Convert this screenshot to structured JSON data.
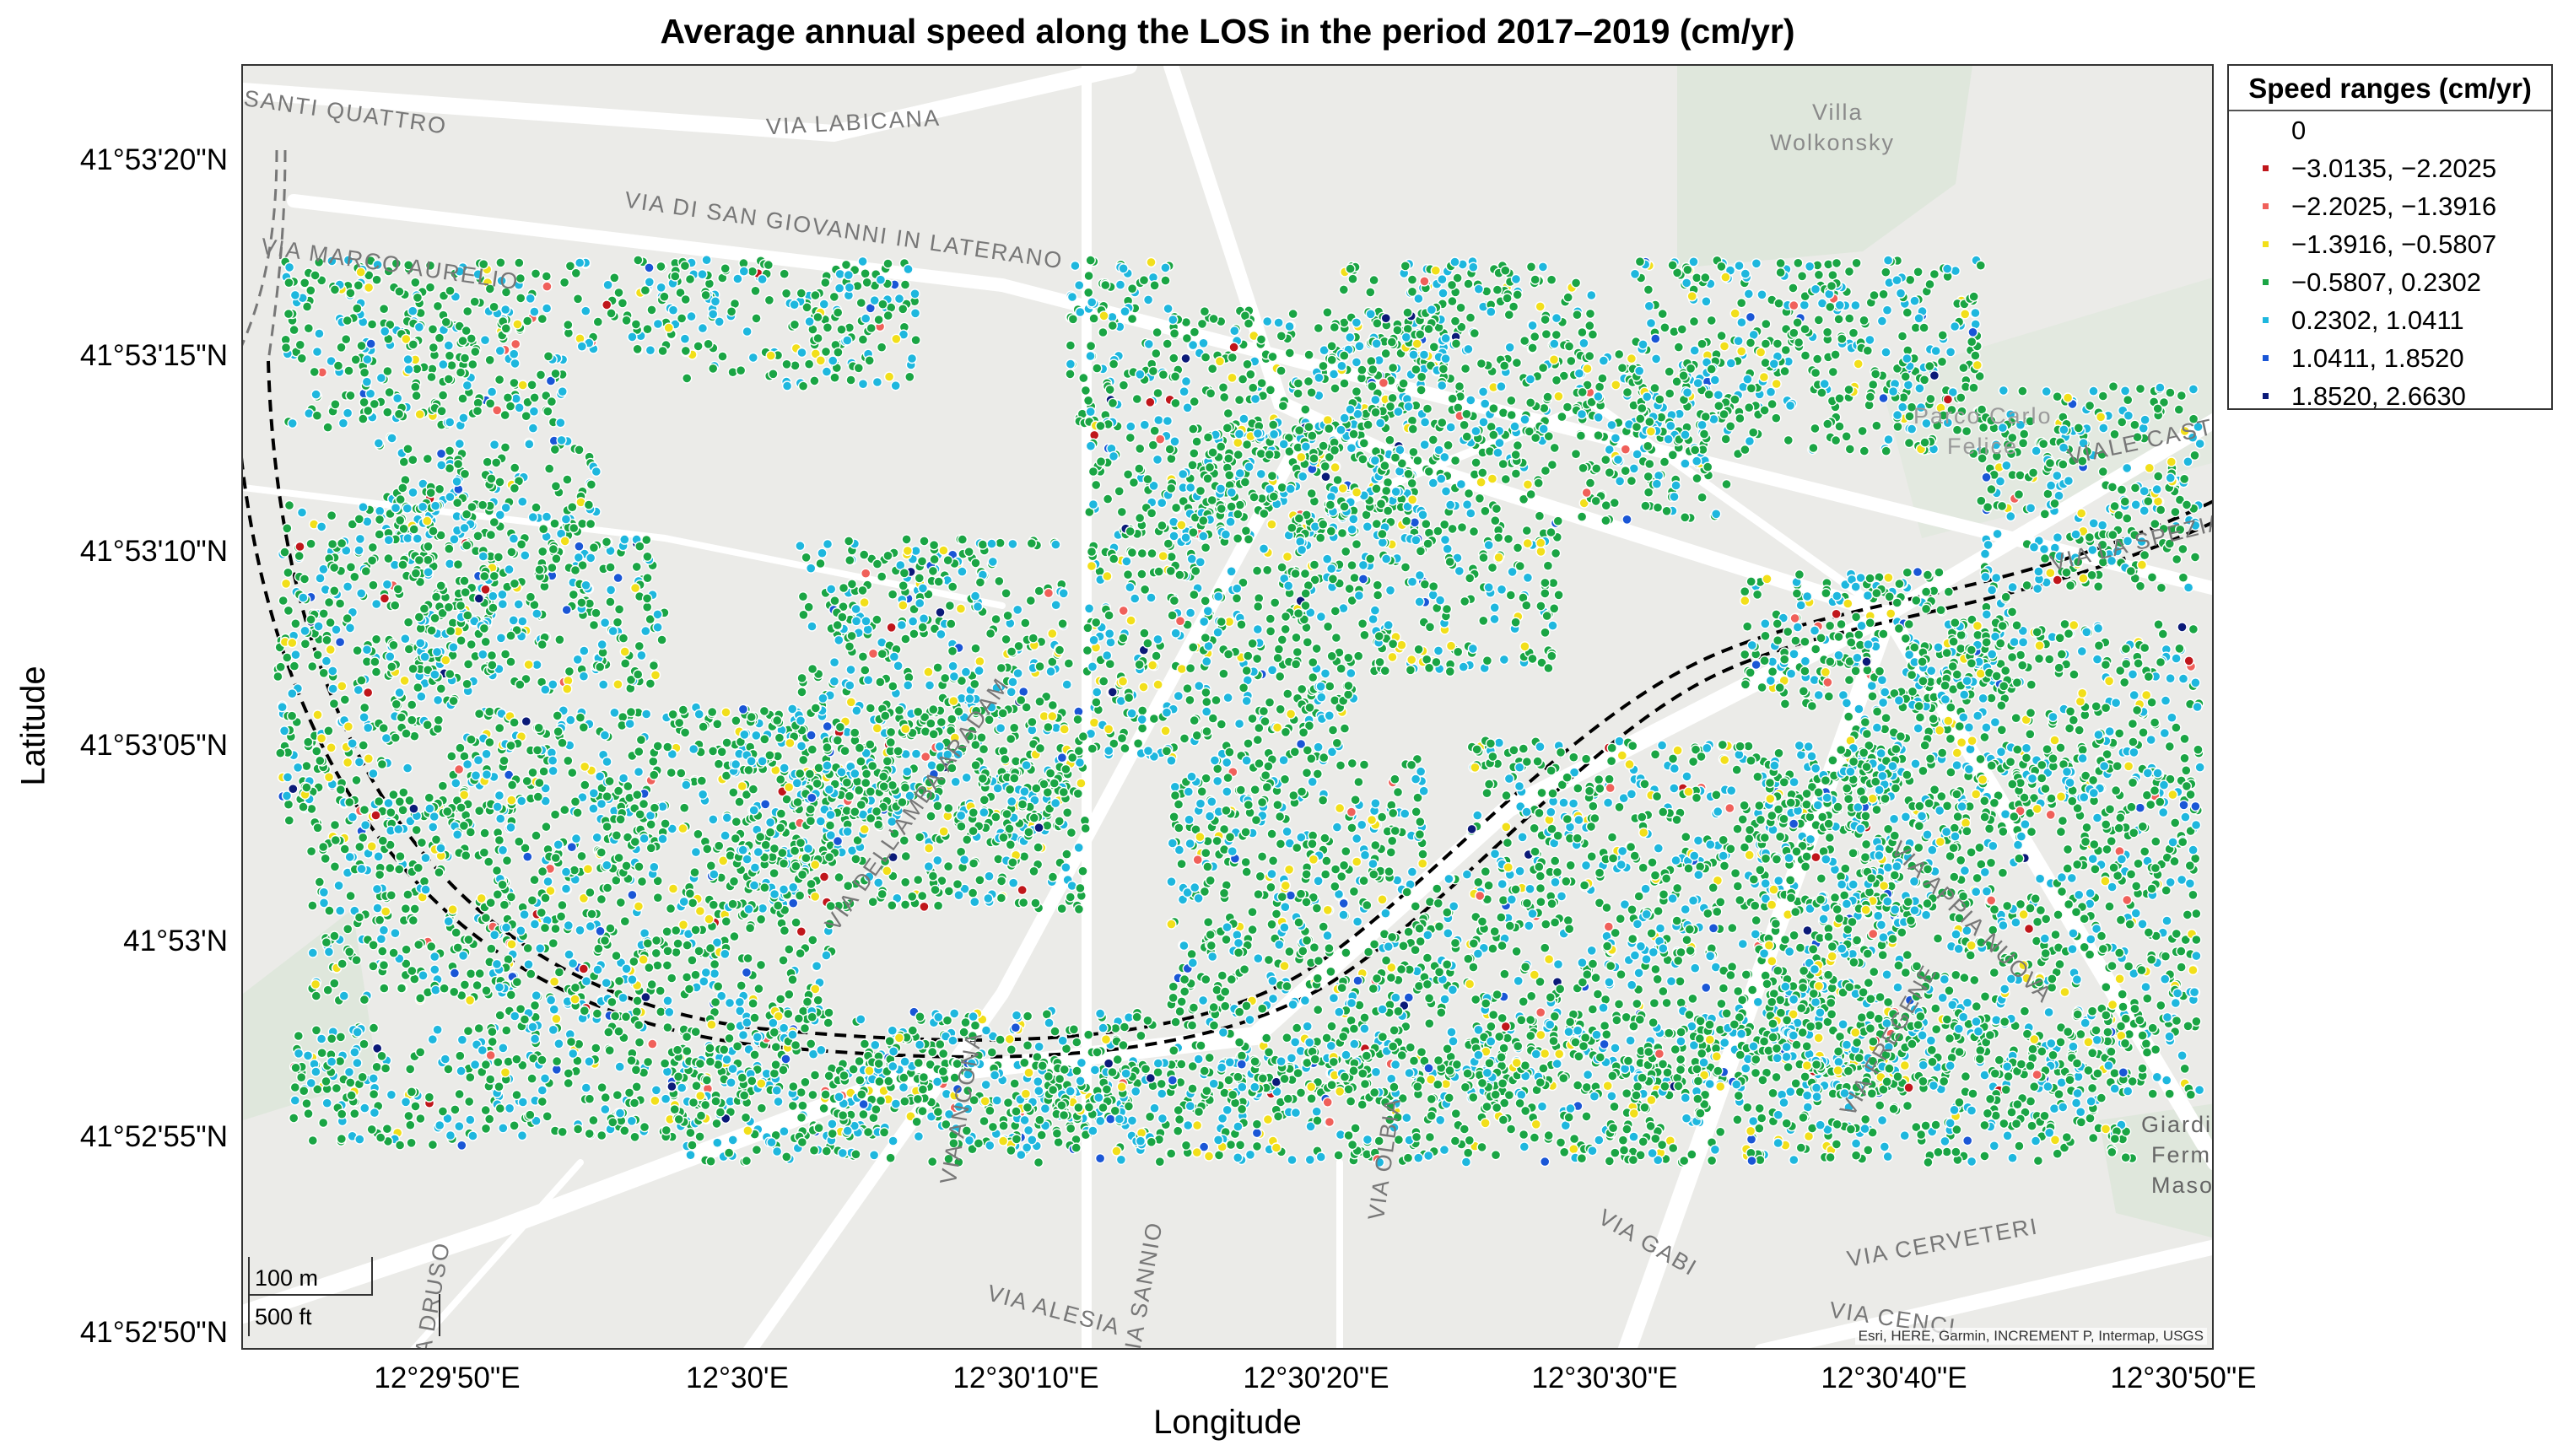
{
  "title": "Average annual speed along the LOS in the period 2017–2019 (cm/yr)",
  "axes": {
    "xlabel": "Longitude",
    "ylabel": "Latitude",
    "xticks": [
      "12°29'50\"E",
      "12°30'E",
      "12°30'10\"E",
      "12°30'20\"E",
      "12°30'30\"E",
      "12°30'40\"E",
      "12°30'50\"E"
    ],
    "yticks": [
      "41°53'20\"N",
      "41°53'15\"N",
      "41°53'10\"N",
      "41°53'05\"N",
      "41°53'N",
      "41°52'55\"N",
      "41°52'50\"N"
    ]
  },
  "legend": {
    "title": "Speed ranges (cm/yr)",
    "items": [
      {
        "label": "0",
        "color": "#ffffff"
      },
      {
        "label": "−3.0135, −2.2025",
        "color": "#c0161b"
      },
      {
        "label": "−2.2025, −1.3916",
        "color": "#f0605a"
      },
      {
        "label": "−1.3916, −0.5807",
        "color": "#f2df1a"
      },
      {
        "label": "−0.5807, 0.2302",
        "color": "#1aa544"
      },
      {
        "label": "0.2302, 1.0411",
        "color": "#1eb7de"
      },
      {
        "label": "1.0411, 1.8520",
        "color": "#1a56d6"
      },
      {
        "label": "1.8520, 2.6630",
        "color": "#0b1a78"
      }
    ]
  },
  "scale_bar": {
    "metric": "100 m",
    "imperial": "500 ft"
  },
  "attribution": "Esri, HERE, Garmin, INCREMENT P, Intermap, USGS",
  "map_labels": [
    "VIA LABICANA",
    "VIA DI SAN GIOVANNI IN LATERANO",
    "VIA MARCO AURELIO",
    "Villa",
    "Wolkonsky",
    "Parco Carlo",
    "Felice",
    "VIALE CASTRENSE",
    "VIA LA SPEZIA",
    "VIA DELL'AMBA ARADAM",
    "VIA GABI",
    "VIA CERVETERI",
    "VIA ALESIA",
    "VIA OLBIA",
    "VIA APPIA NUOVA",
    "Giardino",
    "Fermi",
    "Maso",
    "VIA CENCI",
    "SANTI QUATTRO",
    "VIA ANCONA",
    "VIA DRUSO",
    "VIA FREGENE",
    "VIA SANNIO"
  ],
  "chart_data": {
    "type": "scatter",
    "title": "Average annual speed along the LOS in the period 2017–2019 (cm/yr)",
    "xlabel": "Longitude",
    "ylabel": "Latitude",
    "x_ticks": [
      "12°29'50\"E",
      "12°30'E",
      "12°30'10\"E",
      "12°30'20\"E",
      "12°30'30\"E",
      "12°30'40\"E",
      "12°30'50\"E"
    ],
    "y_ticks": [
      "41°53'20\"N",
      "41°53'15\"N",
      "41°53'10\"N",
      "41°53'05\"N",
      "41°53'N",
      "41°52'55\"N",
      "41°52'50\"N"
    ],
    "legend_placement": "outside-right",
    "classes": [
      {
        "range": [
          -3.0135,
          -2.2025
        ],
        "color": "#c0161b"
      },
      {
        "range": [
          -2.2025,
          -1.3916
        ],
        "color": "#f0605a"
      },
      {
        "range": [
          -1.3916,
          -0.5807
        ],
        "color": "#f2df1a"
      },
      {
        "range": [
          -0.5807,
          0.2302
        ],
        "color": "#1aa544"
      },
      {
        "range": [
          0.2302,
          1.0411
        ],
        "color": "#1eb7de"
      },
      {
        "range": [
          1.0411,
          1.852
        ],
        "color": "#1a56d6"
      },
      {
        "range": [
          1.852,
          2.663
        ],
        "color": "#0b1a78"
      }
    ],
    "class_mix": [
      0.004,
      0.008,
      0.05,
      0.63,
      0.29,
      0.014,
      0.004
    ]
  }
}
